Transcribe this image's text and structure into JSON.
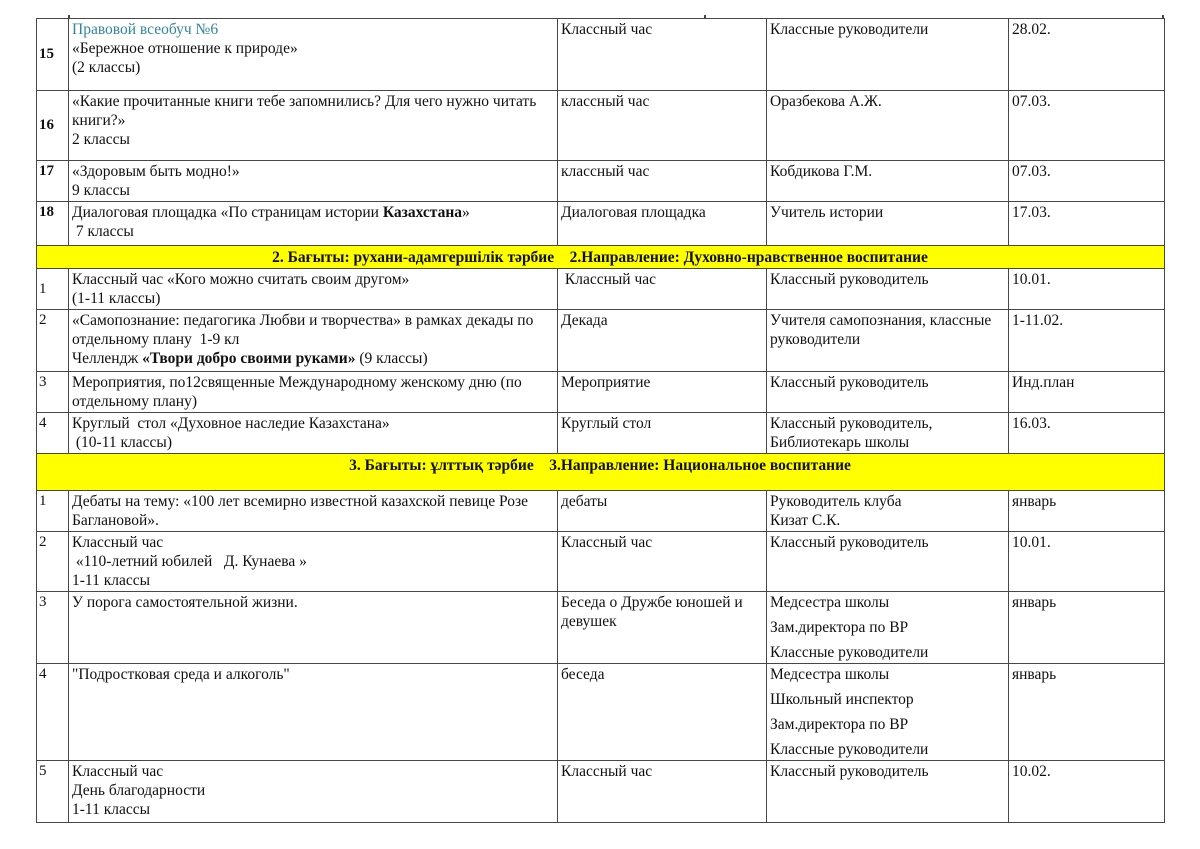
{
  "colors": {
    "highlight": "#ffff00",
    "link_text": "#31859C",
    "border": "#474747"
  },
  "table": {
    "sections": [
      {
        "rows": [
          {
            "num": "15",
            "name": [
              [
                {
                  "t": "Правовой всеобуч №6",
                  "c": "link"
                }
              ],
              [
                {
                  "t": "«Бережное отношение к природе»"
                }
              ],
              [
                {
                  "t": "(2 классы)"
                }
              ]
            ],
            "form": [
              "Классный час"
            ],
            "resp": [
              "Классные руководители"
            ],
            "date": "28.02."
          },
          {
            "num": "16",
            "name": [
              [
                {
                  "t": "«Какие прочитанные книги тебе запомнились? Для чего нужно читать книги?»"
                }
              ],
              [
                {
                  "t": "2 классы"
                }
              ]
            ],
            "form": [
              "классный час"
            ],
            "resp": [
              "Оразбекова А.Ж."
            ],
            "date": "07.03."
          },
          {
            "num": "17",
            "name": [
              [
                {
                  "t": "«Здоровым быть модно!»"
                }
              ],
              [
                {
                  "t": "9 классы"
                }
              ]
            ],
            "form": [
              "классный час"
            ],
            "resp": [
              "Кобдикова Г.М."
            ],
            "date": "07.03."
          },
          {
            "num": "18",
            "name": [
              [
                {
                  "t": "Диалоговая площадка «По страницам истории "
                },
                {
                  "t": "Казахстана",
                  "b": true
                },
                {
                  "t": "»"
                }
              ],
              [
                {
                  "t": " 7 классы"
                }
              ]
            ],
            "form": [
              "Диалоговая площадка"
            ],
            "resp": [
              "Учитель истории"
            ],
            "date": "17.03."
          }
        ]
      },
      {
        "header": "2. Бағыты: рухани-адамгершілік тәрбие    2.Направление: Духовно-нравственное воспитание",
        "rows": [
          {
            "num": "1",
            "name": [
              [
                {
                  "t": "Классный час «Кого можно считать своим другом»"
                }
              ],
              [
                {
                  "t": "(1-11 классы)"
                }
              ]
            ],
            "form": [
              " Классный час"
            ],
            "resp": [
              "Классный руководитель"
            ],
            "date": "10.01."
          },
          {
            "num": "2",
            "name": [
              [
                {
                  "t": "«Самопознание: педагогика Любви и творчества» в рамках декады по отдельному плану  1-9 кл"
                }
              ],
              [
                {
                  "t": "Челлендж "
                },
                {
                  "t": "«Твори добро своими руками»",
                  "b": true
                },
                {
                  "t": " (9 классы)"
                }
              ]
            ],
            "form": [
              "Декада"
            ],
            "resp": [
              "Учителя самопознания, классные руководители"
            ],
            "date": "1-11.02."
          },
          {
            "num": "3",
            "name": [
              [
                {
                  "t": "Мероприятия, по12священные Международному женскому дню (по отдельному плану)"
                }
              ]
            ],
            "form": [
              "Мероприятие"
            ],
            "resp": [
              "Классный руководитель"
            ],
            "date": "Инд.план"
          },
          {
            "num": "4",
            "name": [
              [
                {
                  "t": "Круглый  стол «Духовное наследие Казахстана»"
                }
              ],
              [
                {
                  "t": " (10-11 классы)"
                }
              ]
            ],
            "form": [
              "Круглый стол"
            ],
            "resp": [
              "Классный руководитель,",
              "Библиотекарь школы"
            ],
            "date": "16.03."
          }
        ]
      },
      {
        "header": "3. Бағыты: ұлттық тәрбие    3.Направление: Национальное воспитание",
        "rows": [
          {
            "num": "1",
            "name": [
              [
                {
                  "t": "Дебаты на тему: «100 лет всемирно известной казахской певице Розе Баглановой»."
                }
              ]
            ],
            "form": [
              "дебаты"
            ],
            "resp": [
              "Руководитель клуба",
              "Кизат С.К."
            ],
            "date": "январь"
          },
          {
            "num": "2",
            "name": [
              [
                {
                  "t": "Классный час"
                }
              ],
              [
                {
                  "t": " «110-летний юбилей   Д. Кунаева »"
                }
              ],
              [
                {
                  "t": "1-11 классы"
                }
              ]
            ],
            "form": [
              "Классный час"
            ],
            "resp": [
              "Классный руководитель"
            ],
            "date": "10.01."
          },
          {
            "num": "3",
            "name": [
              [
                {
                  "t": "У порога самостоятельной жизни."
                }
              ]
            ],
            "form": [
              "Беседа о Дружбе юношей и девушек"
            ],
            "resp": [
              "Медсестра школы",
              "Зам.директора по ВР",
              "Классные руководители"
            ],
            "resp_spaced": true,
            "date": "январь"
          },
          {
            "num": "4",
            "name": [
              [
                {
                  "t": "\"Подростковая среда и алкоголь\""
                }
              ]
            ],
            "form": [
              "беседа"
            ],
            "resp": [
              "Медсестра школы",
              "Школьный инспектор",
              "Зам.директора по ВР",
              "Классные руководители"
            ],
            "resp_spaced": true,
            "date": "январь"
          },
          {
            "num": "5",
            "name": [
              [
                {
                  "t": "Классный час"
                }
              ],
              [
                {
                  "t": "День благодарности"
                }
              ],
              [
                {
                  "t": "1-11 классы"
                }
              ]
            ],
            "form": [
              "Классный час"
            ],
            "resp": [
              "Классный руководитель"
            ],
            "date": "10.02."
          }
        ]
      }
    ]
  }
}
